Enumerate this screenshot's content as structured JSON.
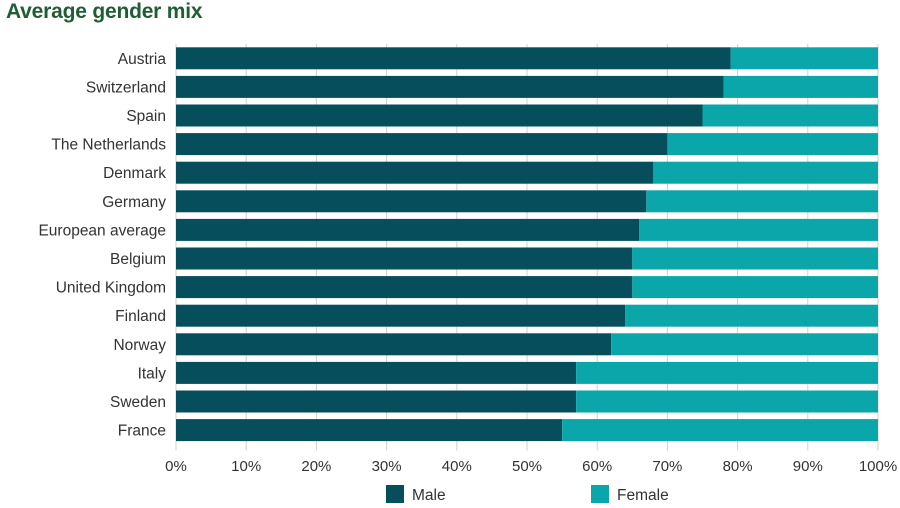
{
  "title": "Average gender mix",
  "colors": {
    "male": "#074e5c",
    "female": "#0ba6a9",
    "title": "#1f5e34",
    "text": "#333333",
    "grid": "#d0d0d0"
  },
  "chart_data": {
    "type": "bar",
    "orientation": "horizontal",
    "stacked": true,
    "percent_stacked": true,
    "title": "Average gender mix",
    "categories": [
      "Austria",
      "Switzerland",
      "Spain",
      "The Netherlands",
      "Denmark",
      "Germany",
      "European average",
      "Belgium",
      "United Kingdom",
      "Finland",
      "Norway",
      "Italy",
      "Sweden",
      "France"
    ],
    "series": [
      {
        "name": "Male",
        "color": "#074e5c",
        "values": [
          79,
          78,
          75,
          70,
          68,
          67,
          66,
          65,
          65,
          64,
          62,
          57,
          57,
          55
        ]
      },
      {
        "name": "Female",
        "color": "#0ba6a9",
        "values": [
          21,
          22,
          25,
          30,
          32,
          33,
          34,
          35,
          35,
          36,
          38,
          43,
          43,
          45
        ]
      }
    ],
    "xlim": [
      0,
      100
    ],
    "xticks": [
      "0%",
      "10%",
      "20%",
      "30%",
      "40%",
      "50%",
      "60%",
      "70%",
      "80%",
      "90%",
      "100%"
    ],
    "grid": true,
    "legend_position": "bottom"
  }
}
